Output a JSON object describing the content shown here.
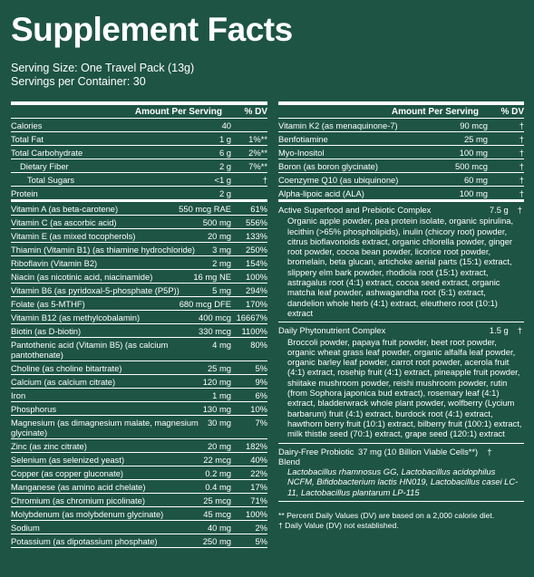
{
  "header": {
    "title": "Supplement Facts",
    "serving_size": "Serving Size: One Travel Pack (13g)",
    "servings": "Servings per Container: 30"
  },
  "left": {
    "col_amount": "Amount Per Serving",
    "col_dv": "% DV",
    "rows": [
      [
        "Calories",
        "40",
        ""
      ],
      [
        "Total Fat",
        "1 g",
        "1%**"
      ],
      [
        "Total Carbohydrate",
        "6 g",
        "2%**"
      ],
      [
        "Dietary Fiber",
        "2 g",
        "7%**"
      ],
      [
        "Total Sugars",
        "<1 g",
        "†"
      ],
      [
        "Protein",
        "2 g",
        ""
      ],
      [
        "Vitamin A (as beta-carotene)",
        "550 mcg RAE",
        "61%"
      ],
      [
        "Vitamin C (as ascorbic acid)",
        "500 mg",
        "556%"
      ],
      [
        "Vitamin E (as mixed tocopherols)",
        "20 mg",
        "133%"
      ],
      [
        "Thiamin (Vitamin B1) (as thiamine hydrochloride)",
        "3 mg",
        "250%"
      ],
      [
        "Riboflavin (Vitamin B2)",
        "2 mg",
        "154%"
      ],
      [
        "Niacin (as nicotinic acid, niacinamide)",
        "16 mg NE",
        "100%"
      ],
      [
        "Vitamin B6 (as pyridoxal-5-phosphate (P5P))",
        "5 mg",
        "294%"
      ],
      [
        "Folate (as 5-MTHF)",
        "680 mcg DFE",
        "170%"
      ],
      [
        "Vitamin B12 (as methylcobalamin)",
        "400 mcg",
        "16667%"
      ],
      [
        "Biotin (as D-biotin)",
        "330 mcg",
        "1100%"
      ],
      [
        "Pantothenic acid (Vitamin B5) (as calcium pantothenate)",
        "4 mg",
        "80%"
      ],
      [
        "Choline (as choline bitartrate)",
        "25 mg",
        "5%"
      ],
      [
        "Calcium (as calcium citrate)",
        "120 mg",
        "9%"
      ],
      [
        "Iron",
        "1 mg",
        "6%"
      ],
      [
        "Phosphorus",
        "130 mg",
        "10%"
      ],
      [
        "Magnesium (as dimagnesium malate, magnesium glycinate)",
        "30 mg",
        "7%"
      ],
      [
        "Zinc (as zinc citrate)",
        "20 mg",
        "182%"
      ],
      [
        "Selenium (as selenized yeast)",
        "22 mcg",
        "40%"
      ],
      [
        "Copper (as copper gluconate)",
        "0.2 mg",
        "22%"
      ],
      [
        "Manganese (as amino acid chelate)",
        "0.4 mg",
        "17%"
      ],
      [
        "Chromium (as chromium picolinate)",
        "25 mcg",
        "71%"
      ],
      [
        "Molybdenum (as molybdenum glycinate)",
        "45 mcg",
        "100%"
      ],
      [
        "Sodium",
        "40 mg",
        "2%"
      ],
      [
        "Potassium (as dipotassium phosphate)",
        "250 mg",
        "5%"
      ]
    ]
  },
  "right": {
    "col_amount": "Amount Per Serving",
    "col_dv": "% DV",
    "rows": [
      [
        "Vitamin K2 (as menaquinone-7)",
        "90 mcg",
        "†"
      ],
      [
        "Benfotiamine",
        "25 mg",
        "†"
      ],
      [
        "Myo-Inositol",
        "100 mg",
        "†"
      ],
      [
        "Boron (as boron glycinate)",
        "500 mcg",
        "†"
      ],
      [
        "Coenzyme Q10 (as ubiquinone)",
        "60 mg",
        "†"
      ],
      [
        "Alpha-lipoic acid (ALA)",
        "100 mg",
        "†"
      ]
    ],
    "blends": [
      {
        "name": "Active Superfood and Prebiotic Complex",
        "amount": "7.5 g",
        "dv": "†",
        "description": "Organic apple powder, pea protein isolate, organic spirulina, lecithin (>65% phospholipids), inulin (chicory root) powder, citrus bioflavonoids extract, organic chlorella powder, ginger root powder, cocoa bean powder, licorice root powder, bromelain, beta glucan, artichoke aerial parts (15:1) extract, slippery elm bark powder, rhodiola root (15:1) extract, astragalus root (4:1) extract, cocoa seed extract, organic matcha leaf powder, ashwagandha root (5:1) extract, dandelion whole herb (4:1) extract, eleuthero root (10:1) extract"
      },
      {
        "name": "Daily Phytonutrient Complex",
        "amount": "1.5 g",
        "dv": "†",
        "description": "Broccoli powder, papaya fruit powder, beet root powder, organic wheat grass leaf powder, organic alfalfa leaf powder, organic barley leaf powder, carrot root powder, acerola fruit (4:1) extract, rosehip fruit (4:1) extract, pineapple fruit powder, shiitake mushroom powder, reishi mushroom powder, rutin (from Sophora japonica bud extract), rosemary leaf (4:1) extract, bladderwrack whole plant powder, wolfberry (Lycium barbarum) fruit (4:1) extract, burdock root (4:1) extract, hawthorn berry fruit (10:1) extract, bilberry fruit (100:1) extract, milk thistle seed (70:1) extract, grape seed (120:1) extract"
      },
      {
        "name": "Dairy-Free Probiotic Blend",
        "amount": "37 mg (10 Billion Viable Cells**)",
        "dv": "†",
        "description": "Lactobacillus rhamnosus GG, Lactobacillus acidophilus NCFM, Bifidobacterium lactis HN019, Lactobacillus casei LC-11, Lactobacillus plantarum LP-115"
      }
    ],
    "footnotes": [
      "** Percent Daily Values (DV) are based on a 2,000 calorie diet.",
      "† Daily Value (DV) not established."
    ]
  }
}
